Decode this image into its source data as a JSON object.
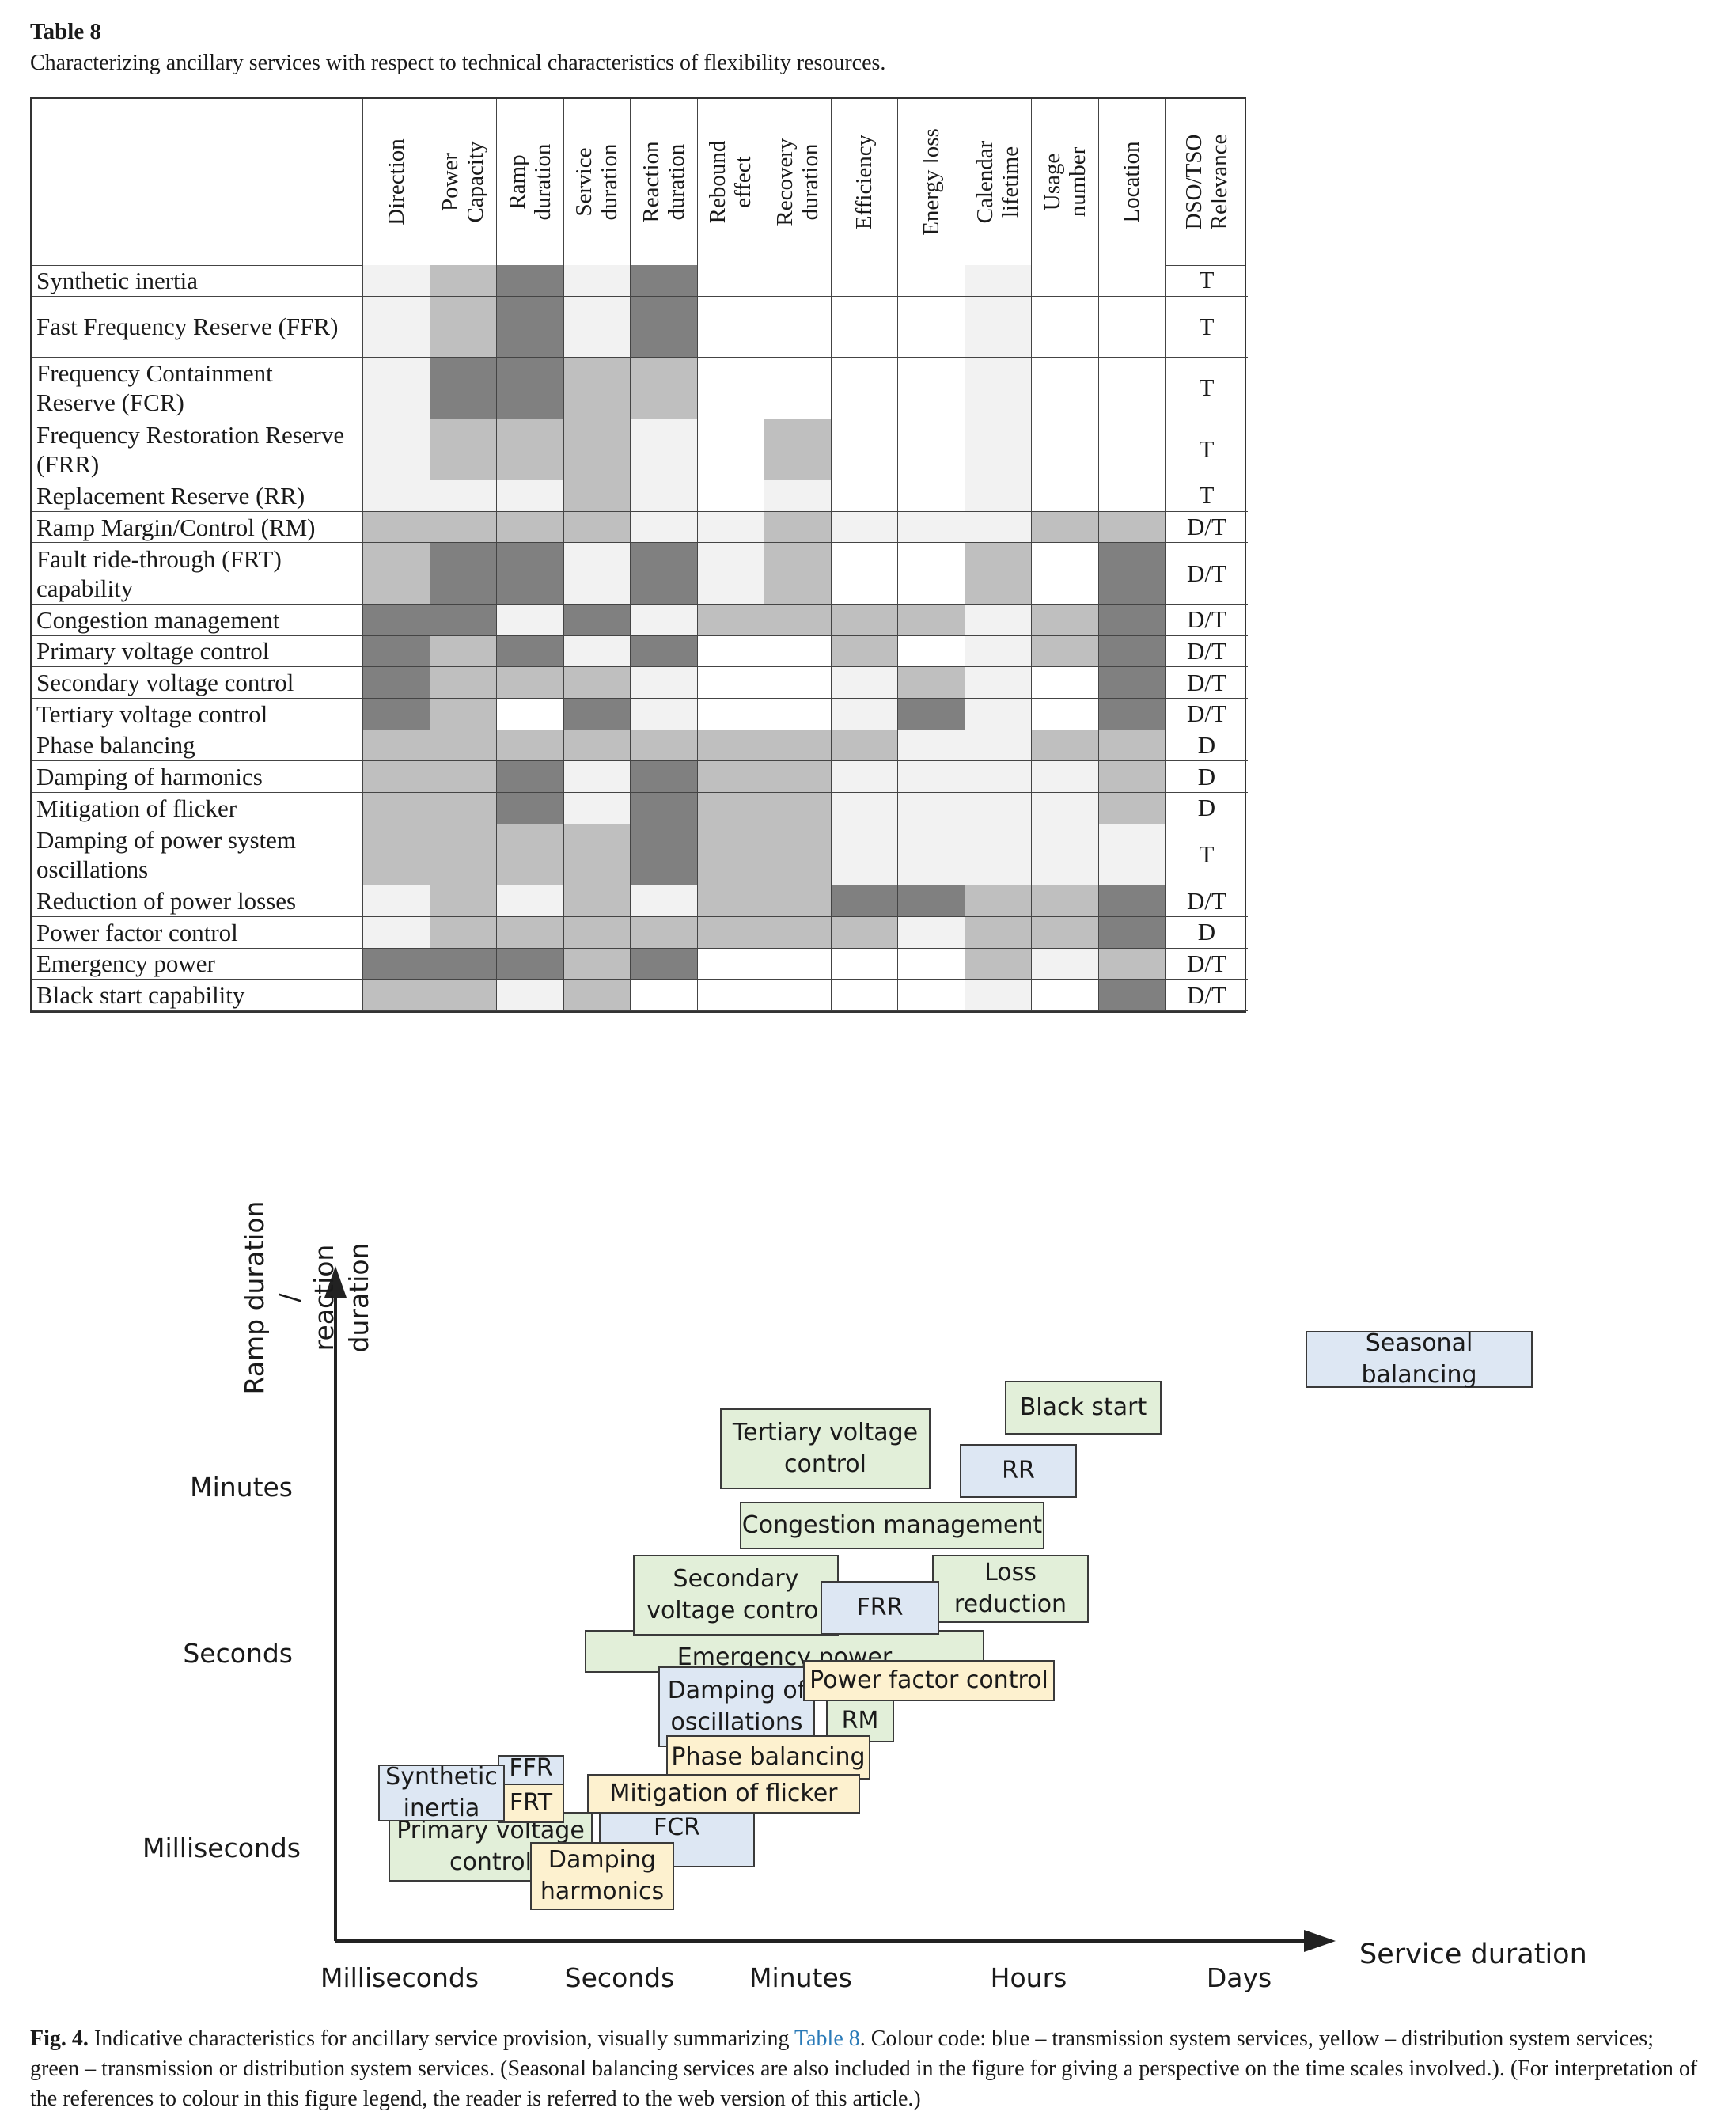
{
  "table": {
    "title": "Table 8",
    "subtitle": "Characterizing ancillary services with respect to technical characteristics of flexibility resources.",
    "columns": [
      "Direction",
      "Power\nCapacity",
      "Ramp\nduration",
      "Service\nduration",
      "Reaction\nduration",
      "Rebound\neffect",
      "Recovery\nduration",
      "Efficiency",
      "Energy loss",
      "Calendar\nlifetime",
      "Usage\nnumber",
      "Location"
    ],
    "relevance_header": "DSO/TSO\nRelevance",
    "shade_legend": {
      "0": "#ffffff",
      "1": "#f2f2f2",
      "2": "#bfbfbf",
      "3": "#808080"
    },
    "rows": [
      {
        "label": "Synthetic inertia",
        "shades": [
          1,
          2,
          3,
          1,
          3,
          0,
          0,
          0,
          0,
          1,
          0,
          0
        ],
        "relevance": "T"
      },
      {
        "label": "Fast Frequency Reserve (FFR)",
        "shades": [
          1,
          2,
          3,
          1,
          3,
          0,
          0,
          0,
          0,
          1,
          0,
          0
        ],
        "relevance": "T"
      },
      {
        "label": "Frequency Containment Reserve (FCR)",
        "shades": [
          1,
          3,
          3,
          2,
          2,
          0,
          0,
          0,
          0,
          1,
          0,
          0
        ],
        "relevance": "T"
      },
      {
        "label": "Frequency Restoration Reserve (FRR)",
        "shades": [
          1,
          2,
          2,
          2,
          1,
          0,
          2,
          0,
          0,
          1,
          0,
          0
        ],
        "relevance": "T"
      },
      {
        "label": "Replacement Reserve (RR)",
        "shades": [
          1,
          1,
          1,
          2,
          1,
          0,
          1,
          0,
          0,
          1,
          0,
          0
        ],
        "relevance": "T"
      },
      {
        "label": "Ramp Margin/Control (RM)",
        "shades": [
          2,
          2,
          2,
          2,
          1,
          1,
          2,
          1,
          1,
          1,
          2,
          2
        ],
        "relevance": "D/T"
      },
      {
        "label": "Fault ride-through (FRT) capability",
        "shades": [
          2,
          3,
          3,
          1,
          3,
          1,
          2,
          0,
          0,
          2,
          0,
          3
        ],
        "relevance": "D/T"
      },
      {
        "label": "Congestion management",
        "shades": [
          3,
          3,
          1,
          3,
          1,
          2,
          2,
          2,
          2,
          1,
          2,
          3
        ],
        "relevance": "D/T"
      },
      {
        "label": "Primary voltage control",
        "shades": [
          3,
          2,
          3,
          1,
          3,
          0,
          0,
          2,
          0,
          1,
          2,
          3
        ],
        "relevance": "D/T"
      },
      {
        "label": "Secondary voltage control",
        "shades": [
          3,
          2,
          2,
          2,
          1,
          0,
          0,
          1,
          2,
          1,
          0,
          3
        ],
        "relevance": "D/T"
      },
      {
        "label": "Tertiary voltage control",
        "shades": [
          3,
          2,
          0,
          3,
          1,
          0,
          0,
          1,
          3,
          1,
          0,
          3
        ],
        "relevance": "D/T"
      },
      {
        "label": "Phase balancing",
        "shades": [
          2,
          2,
          2,
          2,
          2,
          2,
          2,
          2,
          1,
          1,
          2,
          2
        ],
        "relevance": "D"
      },
      {
        "label": "Damping of harmonics",
        "shades": [
          2,
          2,
          3,
          1,
          3,
          2,
          2,
          1,
          1,
          1,
          1,
          2
        ],
        "relevance": "D"
      },
      {
        "label": "Mitigation of flicker",
        "shades": [
          2,
          2,
          3,
          1,
          3,
          2,
          2,
          1,
          1,
          1,
          1,
          2
        ],
        "relevance": "D"
      },
      {
        "label": "Damping of power system oscillations",
        "shades": [
          2,
          2,
          2,
          2,
          3,
          2,
          2,
          1,
          1,
          1,
          1,
          1
        ],
        "relevance": "T"
      },
      {
        "label": "Reduction of power losses",
        "shades": [
          1,
          2,
          1,
          2,
          1,
          2,
          2,
          3,
          3,
          2,
          2,
          3
        ],
        "relevance": "D/T"
      },
      {
        "label": "Power factor control",
        "shades": [
          1,
          2,
          2,
          2,
          2,
          2,
          2,
          2,
          1,
          2,
          2,
          3
        ],
        "relevance": "D"
      },
      {
        "label": "Emergency power",
        "shades": [
          3,
          3,
          3,
          2,
          3,
          0,
          0,
          0,
          0,
          2,
          1,
          2
        ],
        "relevance": "D/T"
      },
      {
        "label": "Black start capability",
        "shades": [
          2,
          2,
          1,
          2,
          0,
          0,
          0,
          0,
          0,
          1,
          0,
          3
        ],
        "relevance": "D/T"
      }
    ]
  },
  "figure": {
    "y_axis_title": "Ramp duration /\nreaction duration",
    "x_axis_title": "Service duration",
    "y_ticks": [
      "Minutes",
      "Seconds",
      "Milliseconds"
    ],
    "x_ticks": [
      "Milliseconds",
      "Seconds",
      "Minutes",
      "Hours",
      "Days"
    ],
    "colors": {
      "blue": "#dde7f3",
      "green": "#e2efd9",
      "yellow": "#fdf1cf"
    },
    "boxes": {
      "seasonal": "Seasonal balancing",
      "black_start": "Black start",
      "tertiary": "Tertiary voltage\ncontrol",
      "rr": "RR",
      "congestion": "Congestion management",
      "secondary": "Secondary\nvoltage control",
      "frr": "FRR",
      "loss": "Loss\nreduction",
      "emergency": "Emergency power",
      "damping_osc": "Damping of\noscillations",
      "power_factor": "Power factor control",
      "rm": "RM",
      "phase": "Phase balancing",
      "flicker": "Mitigation of flicker",
      "synthetic": "Synthetic\ninertia",
      "ffr": "FFR",
      "frt": "FRT",
      "primary": "Primary voltage\ncontrol",
      "fcr": "FCR",
      "damping_harm": "Damping\nharmonics"
    }
  },
  "caption": {
    "label": "Fig. 4.",
    "text_before": "Indicative characteristics for ancillary service provision, visually summarizing ",
    "ref": "Table 8",
    "text_after": ". Colour code: blue – transmission system services, yellow – distribution system services; green – transmission or distribution system services. (Seasonal balancing services are also included in the figure for giving a perspective on the time scales involved.). (For interpretation of the references to colour in this figure legend, the reader is referred to the web version of this article.)"
  }
}
